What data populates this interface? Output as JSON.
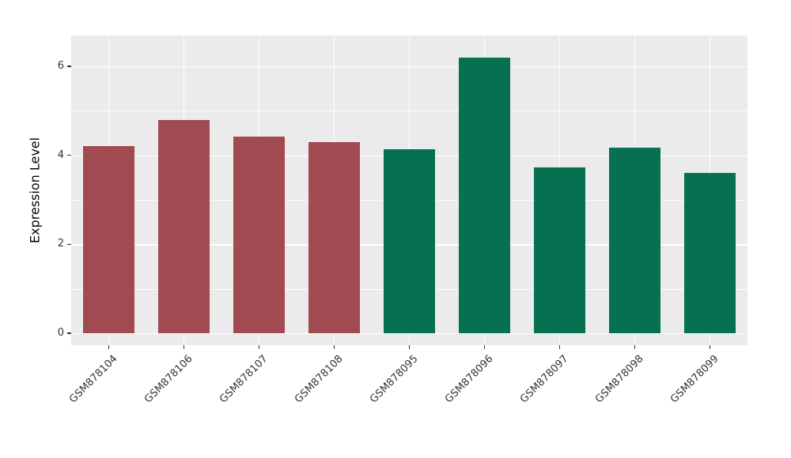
{
  "chart_data": {
    "type": "bar",
    "title": "",
    "xlabel": "",
    "ylabel": "Expression Level",
    "categories": [
      "GSM878104",
      "GSM878106",
      "GSM878107",
      "GSM878108",
      "GSM878095",
      "GSM878096",
      "GSM878097",
      "GSM878098",
      "GSM878099"
    ],
    "values": [
      4.2,
      4.8,
      4.42,
      4.3,
      4.13,
      6.2,
      3.73,
      4.18,
      3.6
    ],
    "bar_colors": [
      "#A14A52",
      "#A14A52",
      "#A14A52",
      "#A14A52",
      "#067150",
      "#067150",
      "#067150",
      "#067150",
      "#067150"
    ],
    "group_colors": {
      "red_group": "#A14A52",
      "green_group": "#067150"
    },
    "ylim": [
      0,
      6.7
    ],
    "yticks": [
      0,
      2,
      4,
      6
    ],
    "minor_yticks": [
      1,
      3,
      5
    ],
    "grid": true,
    "legend": "none",
    "panel_background": "#EBEBEB",
    "gridline_color": "#FFFFFF",
    "tick_label_color": "#333333"
  }
}
